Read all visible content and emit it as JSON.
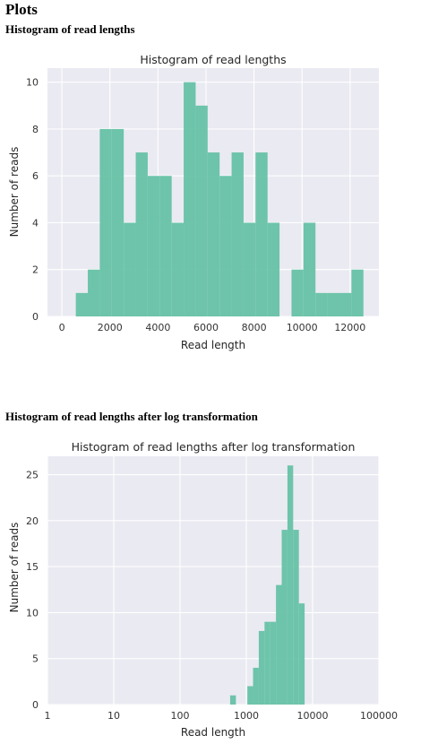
{
  "page_title": "Plots",
  "sections": [
    {
      "heading": "Histogram of read lengths"
    },
    {
      "heading": "Histogram of read lengths after log transformation"
    }
  ],
  "colors": {
    "bar": "#66c2a5",
    "plot_background": "#eaeaf2",
    "grid": "#ffffff"
  },
  "chart_data": [
    {
      "type": "bar",
      "title": "Histogram of read lengths",
      "xlabel": "Read length",
      "ylabel": "Number of reads",
      "xlim": [
        -600,
        13200
      ],
      "ylim": [
        0,
        10.6
      ],
      "xticks": [
        0,
        2000,
        4000,
        6000,
        8000,
        10000,
        12000
      ],
      "xtick_labels": [
        "0",
        "2000",
        "4000",
        "6000",
        "8000",
        "10000",
        "12000"
      ],
      "yticks": [
        0,
        2,
        4,
        6,
        8,
        10
      ],
      "ytick_labels": [
        "0",
        "2",
        "4",
        "6",
        "8",
        "10"
      ],
      "grid": true,
      "bin_edges": [
        580,
        1079,
        1578,
        2077,
        2576,
        3075,
        3574,
        4073,
        4572,
        5071,
        5570,
        6069,
        6568,
        7067,
        7566,
        8065,
        8564,
        9063,
        9562,
        10061,
        10560,
        11059,
        11558,
        12057,
        12556
      ],
      "counts": [
        1,
        2,
        8,
        8,
        4,
        7,
        6,
        6,
        4,
        10,
        9,
        7,
        6,
        7,
        4,
        7,
        4,
        0,
        2,
        4,
        1,
        1,
        1,
        2
      ]
    },
    {
      "type": "bar",
      "title": "Histogram of read lengths after log transformation",
      "xlabel": "Read length",
      "ylabel": "Number of reads",
      "xscale": "log",
      "xlim": [
        1,
        100000
      ],
      "ylim": [
        0,
        27
      ],
      "xticks": [
        1,
        10,
        100,
        1000,
        10000,
        100000
      ],
      "xtick_labels": [
        "1",
        "10",
        "100",
        "1000",
        "10000",
        "100000"
      ],
      "yticks": [
        0,
        5,
        10,
        15,
        20,
        25
      ],
      "ytick_labels": [
        "0",
        "5",
        "10",
        "15",
        "20",
        "25"
      ],
      "grid": true,
      "bin_edges": [
        570,
        696,
        849,
        1036,
        1264,
        1542,
        1882,
        2296,
        2802,
        3418,
        4171,
        5090,
        6210,
        7578,
        9247,
        11282
      ],
      "counts": [
        1,
        0,
        0,
        2,
        4,
        8,
        9,
        9,
        13,
        19,
        26,
        19,
        11,
        0,
        0
      ]
    }
  ]
}
